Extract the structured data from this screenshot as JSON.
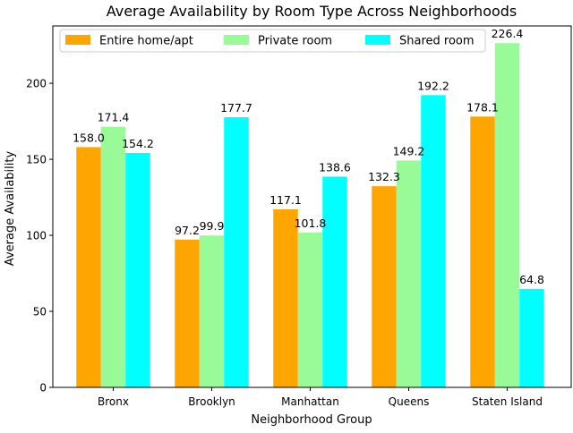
{
  "chart_data": {
    "type": "bar",
    "title": "Average Availability by Room Type Across Neighborhoods",
    "xlabel": "Neighborhood Group",
    "ylabel": "Average Availability",
    "categories": [
      "Bronx",
      "Brooklyn",
      "Manhattan",
      "Queens",
      "Staten Island"
    ],
    "series": [
      {
        "name": "Entire home/apt",
        "color": "#ffa500",
        "values": [
          158.0,
          97.2,
          117.1,
          132.3,
          178.1
        ],
        "labels": [
          "158.0",
          "97.2",
          "117.1",
          "132.3",
          "178.1"
        ]
      },
      {
        "name": "Private room",
        "color": "#98fb98",
        "values": [
          171.4,
          99.9,
          101.8,
          149.2,
          226.4
        ],
        "labels": [
          "171.4",
          "99.9",
          "101.8",
          "149.2",
          "226.4"
        ]
      },
      {
        "name": "Shared room",
        "color": "#00ffff",
        "values": [
          154.2,
          177.7,
          138.6,
          192.2,
          64.8
        ],
        "labels": [
          "154.2",
          "177.7",
          "138.6",
          "192.2",
          "64.8"
        ]
      }
    ],
    "ylim": [
      0,
      237.7
    ],
    "yticks": [
      0,
      50,
      100,
      150,
      200
    ],
    "ytick_labels": [
      "0",
      "50",
      "100",
      "150",
      "200"
    ],
    "grid": false,
    "legend_position": "top"
  }
}
